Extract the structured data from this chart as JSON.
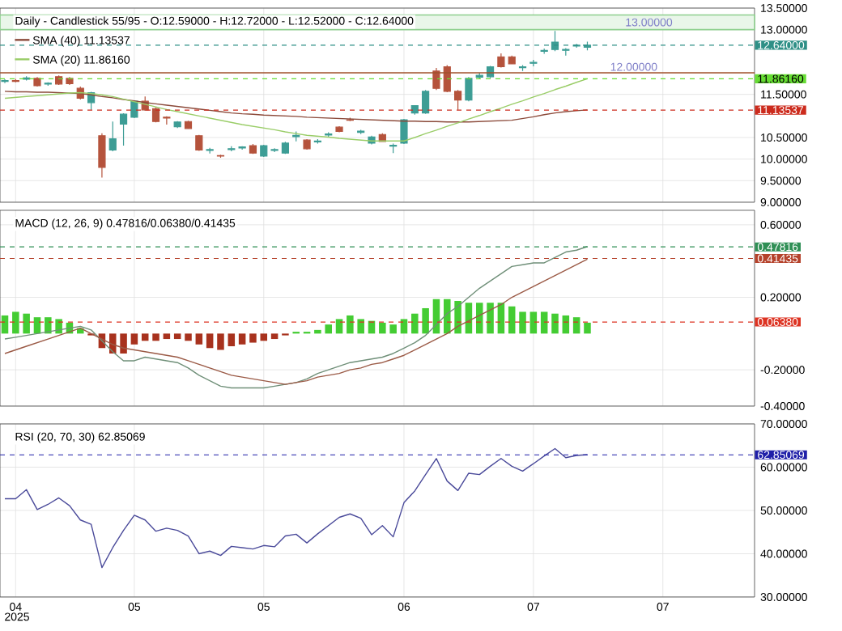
{
  "chart_data": [
    {
      "type": "candlestick",
      "title": "Daily - Candlestick   55/95 - O:12.59000 - H:12.72000 - L:12.52000 - C:12.64000",
      "categories": [
        null,
        "04",
        null,
        null,
        null,
        null,
        null,
        null,
        null,
        null,
        null,
        null,
        "05",
        null,
        null,
        null,
        null,
        null,
        null,
        null,
        null,
        null,
        null,
        null,
        "05",
        null,
        null,
        null,
        null,
        null,
        null,
        null,
        null,
        null,
        null,
        null,
        null,
        "06",
        null,
        null,
        null,
        null,
        null,
        null,
        null,
        null,
        null,
        null,
        null,
        "07",
        null,
        null,
        null,
        null,
        null,
        null,
        null,
        null,
        null,
        null,
        null,
        "07",
        null,
        null,
        null,
        null,
        null,
        null,
        null,
        null
      ],
      "ohlc": [
        [
          11.8,
          11.85,
          11.76,
          11.82
        ],
        [
          11.82,
          11.86,
          11.78,
          11.8
        ],
        [
          11.85,
          11.92,
          11.82,
          11.88
        ],
        [
          11.87,
          11.9,
          11.68,
          11.7
        ],
        [
          11.74,
          11.78,
          11.7,
          11.76
        ],
        [
          11.91,
          11.94,
          11.72,
          11.74
        ],
        [
          11.87,
          11.9,
          11.72,
          11.75
        ],
        [
          11.64,
          11.68,
          11.38,
          11.41
        ],
        [
          11.31,
          11.56,
          11.14,
          11.54
        ],
        [
          10.54,
          10.6,
          9.57,
          9.81
        ],
        [
          10.21,
          10.87,
          10.18,
          10.47
        ],
        [
          10.81,
          11.06,
          10.31,
          11.04
        ],
        [
          10.97,
          11.36,
          10.95,
          11.34
        ],
        [
          11.34,
          11.45,
          11.12,
          11.14
        ],
        [
          11.17,
          11.2,
          10.85,
          10.87
        ],
        [
          10.97,
          10.99,
          10.8,
          10.95
        ],
        [
          10.75,
          10.88,
          10.72,
          10.86
        ],
        [
          10.87,
          10.89,
          10.7,
          10.71
        ],
        [
          10.54,
          10.56,
          10.19,
          10.21
        ],
        [
          10.2,
          10.26,
          10.13,
          10.22
        ],
        [
          10.08,
          10.1,
          10.03,
          10.07
        ],
        [
          10.22,
          10.3,
          10.18,
          10.24
        ],
        [
          10.26,
          10.3,
          10.22,
          10.28
        ],
        [
          10.31,
          10.35,
          10.12,
          10.14
        ],
        [
          10.07,
          10.33,
          10.05,
          10.31
        ],
        [
          10.2,
          10.25,
          10.16,
          10.22
        ],
        [
          10.14,
          10.4,
          10.12,
          10.37
        ],
        [
          10.52,
          10.64,
          10.41,
          10.55
        ],
        [
          10.44,
          10.46,
          10.22,
          10.24
        ],
        [
          10.4,
          10.46,
          10.36,
          10.42
        ],
        [
          10.56,
          10.62,
          10.5,
          10.58
        ],
        [
          10.74,
          10.76,
          10.62,
          10.64
        ],
        [
          10.91,
          10.96,
          10.88,
          10.9
        ],
        [
          10.62,
          10.68,
          10.58,
          10.65
        ],
        [
          10.37,
          10.54,
          10.34,
          10.51
        ],
        [
          10.57,
          10.6,
          10.4,
          10.41
        ],
        [
          10.3,
          10.36,
          10.14,
          10.32
        ],
        [
          10.37,
          10.93,
          10.35,
          10.91
        ],
        [
          11.07,
          11.25,
          11.03,
          11.24
        ],
        [
          11.07,
          11.6,
          11.05,
          11.57
        ],
        [
          12.04,
          12.11,
          11.6,
          11.64
        ],
        [
          12.14,
          12.18,
          11.55,
          11.57
        ],
        [
          11.57,
          11.6,
          11.14,
          11.37
        ],
        [
          11.37,
          11.9,
          11.34,
          11.87
        ],
        [
          11.9,
          12.0,
          11.85,
          11.94
        ],
        [
          11.91,
          12.16,
          11.88,
          12.14
        ],
        [
          12.37,
          12.45,
          12.12,
          12.14
        ],
        [
          12.37,
          12.4,
          12.2,
          12.21
        ],
        [
          12.12,
          12.18,
          12.04,
          12.14
        ],
        [
          12.22,
          12.3,
          12.15,
          12.24
        ],
        [
          12.5,
          12.56,
          12.44,
          12.52
        ],
        [
          12.54,
          12.97,
          12.5,
          12.71
        ],
        [
          12.52,
          12.57,
          12.4,
          12.54
        ],
        [
          12.62,
          12.67,
          12.58,
          12.64
        ],
        [
          12.59,
          12.72,
          12.52,
          12.64
        ],
        null,
        null,
        null,
        null,
        null,
        null,
        null,
        null,
        null,
        null,
        null,
        null,
        null,
        null,
        null
      ],
      "colors": [
        "#3d9d95",
        "#b5533c",
        "#3d9d95",
        "#b5533c",
        "#3d9d95",
        "#b5533c",
        "#b5533c",
        "#b5533c",
        "#3d9d95",
        "#b5533c",
        "#3d9d95",
        "#3d9d95",
        "#3d9d95",
        "#b5533c",
        "#b5533c",
        "#b5533c",
        "#3d9d95",
        "#b5533c",
        "#b5533c",
        "#3d9d95",
        "#b5533c",
        "#3d9d95",
        "#3d9d95",
        "#b5533c",
        "#3d9d95",
        "#3d9d95",
        "#3d9d95",
        "#3d9d95",
        "#b5533c",
        "#3d9d95",
        "#3d9d95",
        "#b5533c",
        "#b5533c",
        "#3d9d95",
        "#3d9d95",
        "#b5533c",
        "#3d9d95",
        "#3d9d95",
        "#3d9d95",
        "#3d9d95",
        "#b5533c",
        "#b5533c",
        "#b5533c",
        "#3d9d95",
        "#3d9d95",
        "#3d9d95",
        "#b5533c",
        "#b5533c",
        "#3d9d95",
        "#3d9d95",
        "#3d9d95",
        "#3d9d95",
        "#3d9d95",
        "#3d9d95",
        "#3d9d95",
        null,
        null,
        null,
        null,
        null,
        null,
        null,
        null,
        null,
        null,
        null,
        null,
        null,
        null,
        null
      ],
      "series": [
        {
          "name": "SMA (40)   11.13537",
          "type": "line",
          "color": "#8b4a3a",
          "values": [
            11.57,
            11.56,
            11.56,
            11.55,
            11.55,
            11.54,
            11.53,
            11.52,
            11.49,
            11.45,
            11.42,
            11.38,
            11.35,
            11.31,
            11.28,
            11.25,
            11.22,
            11.19,
            11.16,
            11.13,
            11.1,
            11.07,
            11.05,
            11.04,
            11.02,
            11.01,
            11.0,
            10.99,
            10.97,
            10.96,
            10.95,
            10.94,
            10.93,
            10.92,
            10.91,
            10.9,
            10.89,
            10.88,
            10.88,
            10.87,
            10.87,
            10.86,
            10.86,
            10.86,
            10.87,
            10.88,
            10.89,
            10.9,
            10.94,
            10.98,
            11.03,
            11.07,
            11.1,
            11.12,
            11.14,
            null,
            null,
            null,
            null,
            null,
            null,
            null,
            null,
            null,
            null,
            null,
            null,
            null,
            null,
            null
          ]
        },
        {
          "name": "SMA (20)   11.86160",
          "type": "line",
          "color": "#9acd68",
          "values": [
            11.41,
            11.43,
            11.45,
            11.47,
            11.49,
            11.51,
            11.53,
            11.54,
            11.52,
            11.49,
            11.45,
            11.39,
            11.33,
            11.27,
            11.21,
            11.15,
            11.1,
            11.05,
            11.0,
            10.95,
            10.9,
            10.85,
            10.8,
            10.76,
            10.72,
            10.68,
            10.63,
            10.59,
            10.55,
            10.53,
            10.51,
            10.48,
            10.46,
            10.44,
            10.42,
            10.42,
            10.42,
            10.42,
            10.5,
            10.59,
            10.67,
            10.76,
            10.84,
            10.93,
            11.01,
            11.1,
            11.18,
            11.27,
            11.35,
            11.44,
            11.52,
            11.61,
            11.69,
            11.78,
            11.86,
            null,
            null,
            null,
            null,
            null,
            null,
            null,
            null,
            null,
            null,
            null,
            null,
            null,
            null,
            null
          ]
        }
      ],
      "ylim": [
        9,
        13.5
      ],
      "yticks": [
        {
          "value": 9,
          "label": "9.00000"
        },
        {
          "value": 9.5,
          "label": "9.50000"
        },
        {
          "value": 10,
          "label": "10.00000"
        },
        {
          "value": 10.5,
          "label": "10.50000"
        },
        {
          "value": 11.5,
          "label": "11.50000"
        },
        {
          "value": 13,
          "label": "13.00000"
        },
        {
          "value": 13.5,
          "label": "13.50000"
        }
      ],
      "grid": true,
      "tick_labels": "y",
      "legend": "top left",
      "ref_lines": [
        {
          "axis": "y",
          "value": 12.64,
          "label": "12.64000",
          "color": "#2e8f86",
          "line_style": "dashed"
        },
        {
          "axis": "y",
          "value": 11.8616,
          "label": "11.86160",
          "color": "#66dd33",
          "line_style": "dashed"
        },
        {
          "axis": "y",
          "value": 11.13537,
          "label": "11.13537",
          "color": "#cc2b1d",
          "line_style": "dashed"
        },
        {
          "axis": "y",
          "value": 12.0,
          "label": "12.00000",
          "color": "#a0522d",
          "line_style": "solid"
        }
      ],
      "bands": [
        {
          "axis": "y",
          "from": 13.0,
          "to": 13.34,
          "label": "13.00000",
          "color": "#8fd08f"
        }
      ]
    },
    {
      "type": "bar",
      "title": "MACD (12, 26, 9)   0.47816/0.06380/0.41435",
      "categories": [
        null,
        "04",
        null,
        null,
        null,
        null,
        null,
        null,
        null,
        null,
        null,
        null,
        "05",
        null,
        null,
        null,
        null,
        null,
        null,
        null,
        null,
        null,
        null,
        null,
        "05",
        null,
        null,
        null,
        null,
        null,
        null,
        null,
        null,
        null,
        null,
        null,
        null,
        "06",
        null,
        null,
        null,
        null,
        null,
        null,
        null,
        null,
        null,
        null,
        null,
        "07",
        null,
        null,
        null,
        null,
        null,
        null,
        null,
        null,
        null,
        null,
        null,
        "07",
        null,
        null,
        null,
        null,
        null,
        null,
        null,
        null
      ],
      "series": [
        {
          "type": "bar",
          "values": [
            0.1,
            0.12,
            0.11,
            0.09,
            0.09,
            0.08,
            0.06,
            0.03,
            -0.01,
            -0.08,
            -0.11,
            -0.11,
            -0.06,
            -0.04,
            -0.04,
            -0.03,
            -0.03,
            -0.04,
            -0.06,
            -0.08,
            -0.09,
            -0.07,
            -0.06,
            -0.05,
            -0.04,
            -0.03,
            -0.01,
            0.01,
            0.01,
            0.02,
            0.05,
            0.08,
            0.1,
            0.08,
            0.07,
            0.06,
            0.05,
            0.08,
            0.11,
            0.14,
            0.19,
            0.19,
            0.18,
            0.17,
            0.17,
            0.17,
            0.17,
            0.15,
            0.12,
            0.12,
            0.12,
            0.11,
            0.1,
            0.09,
            0.06,
            null,
            null,
            null,
            null,
            null,
            null,
            null,
            null,
            null,
            null,
            null,
            null,
            null,
            null,
            null
          ],
          "colors": [
            "#44cc33",
            "#44cc33",
            "#44cc33",
            "#44cc33",
            "#44cc33",
            "#44cc33",
            "#44cc33",
            "#44cc33",
            "#a8321e",
            "#a8321e",
            "#a8321e",
            "#a8321e",
            "#a8321e",
            "#a8321e",
            "#a8321e",
            "#a8321e",
            "#a8321e",
            "#a8321e",
            "#a8321e",
            "#a8321e",
            "#a8321e",
            "#a8321e",
            "#a8321e",
            "#a8321e",
            "#a8321e",
            "#a8321e",
            "#a8321e",
            "#44cc33",
            "#44cc33",
            "#44cc33",
            "#44cc33",
            "#44cc33",
            "#44cc33",
            "#44cc33",
            "#44cc33",
            "#44cc33",
            "#44cc33",
            "#44cc33",
            "#44cc33",
            "#44cc33",
            "#44cc33",
            "#44cc33",
            "#44cc33",
            "#44cc33",
            "#44cc33",
            "#44cc33",
            "#44cc33",
            "#44cc33",
            "#44cc33",
            "#44cc33",
            "#44cc33",
            "#44cc33",
            "#44cc33",
            "#44cc33",
            "#44cc33",
            null,
            null,
            null,
            null,
            null,
            null,
            null,
            null,
            null,
            null,
            null,
            null,
            null,
            null,
            null
          ]
        },
        {
          "type": "line",
          "color": "#6f8f78",
          "values": [
            -0.03,
            -0.02,
            -0.01,
            0.0,
            0.01,
            0.02,
            0.03,
            0.04,
            0.02,
            -0.04,
            -0.1,
            -0.15,
            -0.15,
            -0.13,
            -0.14,
            -0.15,
            -0.16,
            -0.19,
            -0.23,
            -0.26,
            -0.29,
            -0.3,
            -0.3,
            -0.3,
            -0.3,
            -0.29,
            -0.28,
            -0.27,
            -0.25,
            -0.22,
            -0.2,
            -0.18,
            -0.16,
            -0.15,
            -0.14,
            -0.13,
            -0.11,
            -0.08,
            -0.05,
            -0.01,
            0.05,
            0.11,
            0.15,
            0.2,
            0.25,
            0.29,
            0.33,
            0.37,
            0.38,
            0.39,
            0.39,
            0.42,
            0.45,
            0.46,
            0.48,
            null,
            null,
            null,
            null,
            null,
            null,
            null,
            null,
            null,
            null,
            null,
            null,
            null,
            null,
            null
          ]
        },
        {
          "type": "line",
          "color": "#9b5a46",
          "values": [
            -0.11,
            -0.09,
            -0.07,
            -0.05,
            -0.03,
            -0.01,
            0.01,
            0.03,
            0.0,
            -0.03,
            -0.06,
            -0.08,
            -0.09,
            -0.1,
            -0.11,
            -0.12,
            -0.13,
            -0.15,
            -0.17,
            -0.19,
            -0.21,
            -0.23,
            -0.24,
            -0.25,
            -0.26,
            -0.27,
            -0.28,
            -0.27,
            -0.26,
            -0.24,
            -0.23,
            -0.22,
            -0.2,
            -0.19,
            -0.17,
            -0.16,
            -0.14,
            -0.12,
            -0.09,
            -0.06,
            -0.03,
            0.0,
            0.04,
            0.07,
            0.1,
            0.13,
            0.16,
            0.2,
            0.23,
            0.26,
            0.29,
            0.32,
            0.35,
            0.38,
            0.41,
            null,
            null,
            null,
            null,
            null,
            null,
            null,
            null,
            null,
            null,
            null,
            null,
            null,
            null,
            null
          ]
        }
      ],
      "ylim": [
        -0.4,
        0.68
      ],
      "yticks": [
        {
          "value": -0.4,
          "label": "-0.40000"
        },
        {
          "value": -0.2,
          "label": "-0.20000"
        },
        {
          "value": 0.2,
          "label": "0.20000"
        },
        {
          "value": 0.6,
          "label": "0.60000"
        }
      ],
      "grid": true,
      "tick_labels": "y",
      "ref_lines": [
        {
          "axis": "y",
          "value": 0.47816,
          "label": "0.47816",
          "color": "#2f8f55",
          "line_style": "dashed"
        },
        {
          "axis": "y",
          "value": 0.41435,
          "label": "0.41435",
          "color": "#b5422b",
          "line_style": "dashed"
        },
        {
          "axis": "y",
          "value": 0.0638,
          "label": "0.06380",
          "color": "#dd3322",
          "line_style": "dashed"
        }
      ]
    },
    {
      "type": "line",
      "title": "RSI (20, 70, 30)   62.85069",
      "categories": [
        null,
        "04",
        null,
        null,
        null,
        null,
        null,
        null,
        null,
        null,
        null,
        null,
        "05",
        null,
        null,
        null,
        null,
        null,
        null,
        null,
        null,
        null,
        null,
        null,
        "05",
        null,
        null,
        null,
        null,
        null,
        null,
        null,
        null,
        null,
        null,
        null,
        null,
        "06",
        null,
        null,
        null,
        null,
        null,
        null,
        null,
        null,
        null,
        null,
        null,
        "07",
        null,
        null,
        null,
        null,
        null,
        null,
        null,
        null,
        null,
        null,
        null,
        "07",
        null,
        null,
        null,
        null,
        null,
        null,
        null,
        null
      ],
      "series": [
        {
          "color": "#4a4a9a",
          "values": [
            52.7,
            52.7,
            54.8,
            50.2,
            51.4,
            52.9,
            51.1,
            47.8,
            46.8,
            36.8,
            41.4,
            45.4,
            48.9,
            47.8,
            45.2,
            45.9,
            45.4,
            44.1,
            40,
            40.6,
            39.6,
            41.7,
            41.4,
            41.1,
            41.9,
            41.6,
            44.1,
            44.5,
            42.5,
            44.6,
            46.5,
            48.4,
            49.2,
            48.2,
            44.4,
            46.5,
            43.9,
            51.8,
            54.5,
            58.3,
            62.0,
            56.8,
            54.6,
            58.6,
            58.3,
            60.2,
            62.0,
            60.2,
            59.1,
            60.8,
            62.6,
            64.3,
            62.2,
            62.7,
            62.9,
            null,
            null,
            null,
            null,
            null,
            null,
            null,
            null,
            null,
            null,
            null,
            null,
            null,
            null,
            null
          ]
        }
      ],
      "ylim": [
        30,
        70
      ],
      "yticks": [
        {
          "value": 30,
          "label": "30.00000"
        },
        {
          "value": 40,
          "label": "40.00000"
        },
        {
          "value": 50,
          "label": "50.00000"
        },
        {
          "value": 60,
          "label": "60.00000"
        },
        {
          "value": 70,
          "label": "70.00000"
        }
      ],
      "grid": true,
      "ref_lines": [
        {
          "axis": "y",
          "value": 62.85069,
          "label": "62.85069",
          "color": "#1f1fa8",
          "line_style": "dashed"
        }
      ],
      "annotations": [
        "2025"
      ]
    }
  ]
}
